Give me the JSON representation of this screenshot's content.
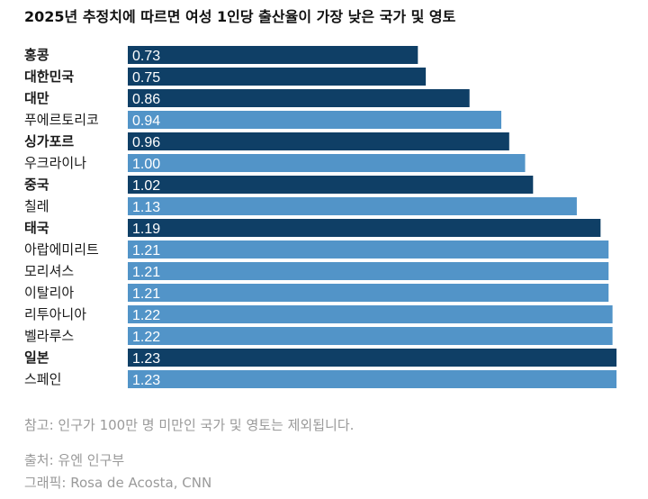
{
  "title": "2025년 추정치에 따르면 여성 1인당 출산율이 가장 낮은 국가 및 영토",
  "colors": {
    "highlight": "#0f3f66",
    "regular": "#5294c8",
    "label_text": "#ffffff",
    "footer_text": "#9a9a9a"
  },
  "chart_data": {
    "type": "bar",
    "orientation": "horizontal",
    "title": "2025년 추정치에 따르면 여성 1인당 출산율이 가장 낮은 국가 및 영토",
    "xlim": [
      0,
      1.23
    ],
    "grid": false,
    "legend": "none",
    "categories": [
      "홍콩",
      "대한민국",
      "대만",
      "푸에르토리코",
      "싱가포르",
      "우크라이나",
      "중국",
      "칠레",
      "태국",
      "아랍에미리트",
      "모리셔스",
      "이탈리아",
      "리투아니아",
      "벨라루스",
      "일본",
      "스페인"
    ],
    "values": [
      0.73,
      0.75,
      0.86,
      0.94,
      0.96,
      1.0,
      1.02,
      1.13,
      1.19,
      1.21,
      1.21,
      1.21,
      1.22,
      1.22,
      1.23,
      1.23
    ],
    "value_labels": [
      "0.73",
      "0.75",
      "0.86",
      "0.94",
      "0.96",
      "1.00",
      "1.02",
      "1.13",
      "1.19",
      "1.21",
      "1.21",
      "1.21",
      "1.22",
      "1.22",
      "1.23",
      "1.23"
    ],
    "highlighted": [
      true,
      true,
      true,
      false,
      true,
      false,
      true,
      false,
      true,
      false,
      false,
      false,
      false,
      false,
      true,
      false
    ]
  },
  "footer": {
    "note": "참고: 인구가 100만 명 미만인 국가 및 영토는 제외됩니다.",
    "source": "출처: 유엔 인구부",
    "credit": "그래픽: Rosa de Acosta, CNN"
  }
}
